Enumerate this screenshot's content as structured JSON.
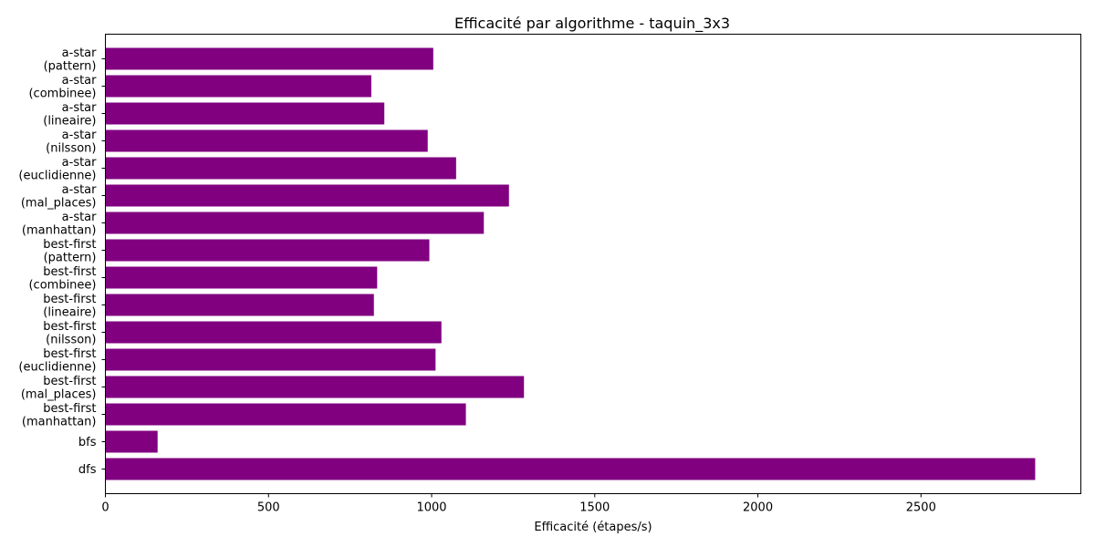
{
  "chart_data": {
    "type": "bar",
    "orientation": "horizontal",
    "title": "Efficacité par algorithme - taquin_3x3",
    "xlabel": "Efficacité (étapes/s)",
    "ylabel": "",
    "xlim": [
      0,
      2990
    ],
    "xticks": [
      0,
      500,
      1000,
      1500,
      2000,
      2500
    ],
    "grid": false,
    "bar_color": "#800080",
    "categories": [
      "dfs",
      "bfs",
      "best-first\n(manhattan)",
      "best-first\n(mal_places)",
      "best-first\n(euclidienne)",
      "best-first\n(nilsson)",
      "best-first\n(lineaire)",
      "best-first\n(combinee)",
      "best-first\n(pattern)",
      "a-star\n(manhattan)",
      "a-star\n(mal_places)",
      "a-star\n(euclidienne)",
      "a-star\n(nilsson)",
      "a-star\n(lineaire)",
      "a-star\n(combinee)",
      "a-star\n(pattern)"
    ],
    "values": [
      2850,
      160,
      1105,
      1283,
      1012,
      1030,
      823,
      833,
      993,
      1160,
      1237,
      1075,
      988,
      855,
      815,
      1005
    ]
  }
}
